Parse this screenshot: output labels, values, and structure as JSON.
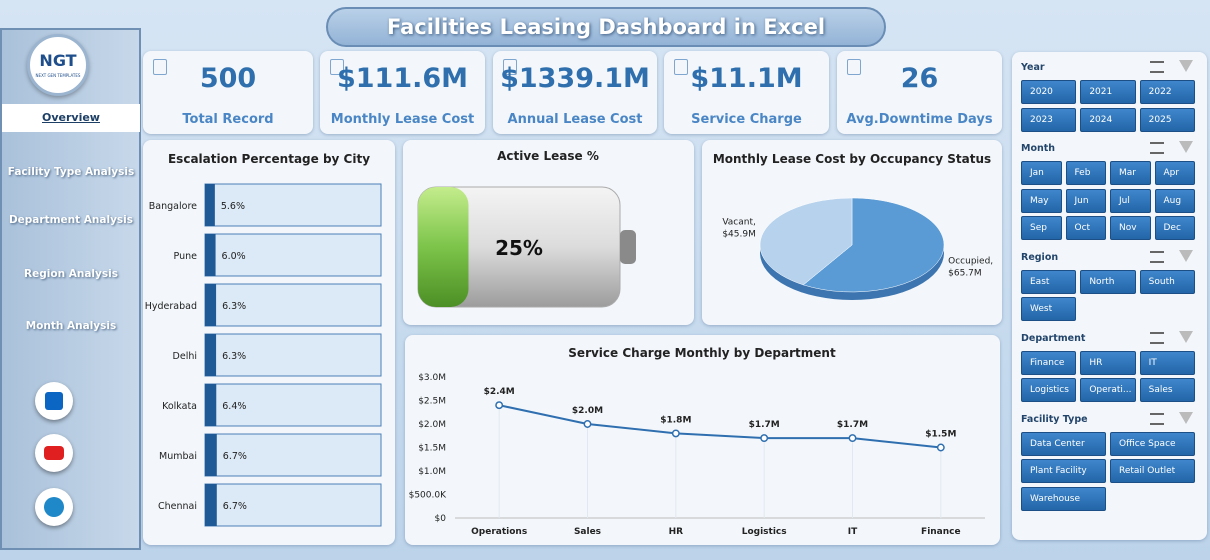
{
  "header": {
    "title": "Facilities Leasing Dashboard in Excel"
  },
  "sidebar": {
    "logo": "NGT",
    "logo_tagline": "NEXT GEN TEMPLATES",
    "nav": [
      "Overview",
      "Facility Type Analysis",
      "Department Analysis",
      "Region Analysis",
      "Month Analysis"
    ]
  },
  "kpis": [
    {
      "value": "500",
      "label": "Total Record"
    },
    {
      "value": "$111.6M",
      "label": "Monthly Lease Cost"
    },
    {
      "value": "$1339.1M",
      "label": "Annual Lease Cost"
    },
    {
      "value": "$11.1M",
      "label": "Service Charge"
    },
    {
      "value": "26",
      "label": "Avg.Downtime Days"
    }
  ],
  "slicers": [
    {
      "title": "Year",
      "items": [
        "2020",
        "2021",
        "2022",
        "2023",
        "2024",
        "2025"
      ]
    },
    {
      "title": "Month",
      "items": [
        "Jan",
        "Feb",
        "Mar",
        "Apr",
        "May",
        "Jun",
        "Jul",
        "Aug",
        "Sep",
        "Oct",
        "Nov",
        "Dec"
      ]
    },
    {
      "title": "Region",
      "items": [
        "East",
        "North",
        "South",
        "West"
      ]
    },
    {
      "title": "Department",
      "items": [
        "Finance",
        "HR",
        "IT",
        "Logistics",
        "Operati...",
        "Sales"
      ]
    },
    {
      "title": "Facility Type",
      "items": [
        "Data Center",
        "Office Space",
        "Plant Facility",
        "Retail Outlet",
        "Warehouse"
      ]
    }
  ],
  "chart_data": [
    {
      "type": "bar",
      "title": "Escalation Percentage by City",
      "orientation": "horizontal",
      "categories": [
        "Bangalore",
        "Pune",
        "Hyderabad",
        "Delhi",
        "Kolkata",
        "Mumbai",
        "Chennai"
      ],
      "values": [
        5.6,
        6.0,
        6.3,
        6.3,
        6.4,
        6.7,
        6.7
      ],
      "value_labels": [
        "5.6%",
        "6.0%",
        "6.3%",
        "6.3%",
        "6.4%",
        "6.7%",
        "6.7%"
      ],
      "xlim": [
        0,
        100
      ],
      "color": "#1f5a96"
    },
    {
      "type": "progress",
      "title": "Active Lease %",
      "values": [
        25
      ],
      "value_labels": [
        "25%"
      ],
      "xlim": [
        0,
        100
      ],
      "color": "#7cc44a"
    },
    {
      "type": "pie",
      "title": "Monthly Lease Cost by Occupancy Status",
      "categories": [
        "Vacant",
        "Occupied"
      ],
      "values": [
        45.9,
        65.7
      ],
      "value_labels": [
        "Vacant, $45.9M",
        "Occupied, $65.7M"
      ],
      "colors": [
        "#b7d2ec",
        "#5b9bd5"
      ]
    },
    {
      "type": "line",
      "title": "Service Charge Monthly by Department",
      "categories": [
        "Operations",
        "Sales",
        "HR",
        "Logistics",
        "IT",
        "Finance"
      ],
      "values": [
        2400000,
        2000000,
        1800000,
        1700000,
        1700000,
        1500000
      ],
      "value_labels": [
        "$2.4M",
        "$2.0M",
        "$1.8M",
        "$1.7M",
        "$1.7M",
        "$1.5M"
      ],
      "ylim": [
        0,
        3000000
      ],
      "yticks": [
        {
          "value": 0,
          "label": "$0"
        },
        {
          "value": 500000,
          "label": "$500.0K"
        },
        {
          "value": 1000000,
          "label": "$1.0M"
        },
        {
          "value": 1500000,
          "label": "$1.5M"
        },
        {
          "value": 2000000,
          "label": "$2.0M"
        },
        {
          "value": 2500000,
          "label": "$2.5M"
        },
        {
          "value": 3000000,
          "label": "$3.0M"
        }
      ],
      "grid": false,
      "color": "#2f6fb0"
    }
  ]
}
